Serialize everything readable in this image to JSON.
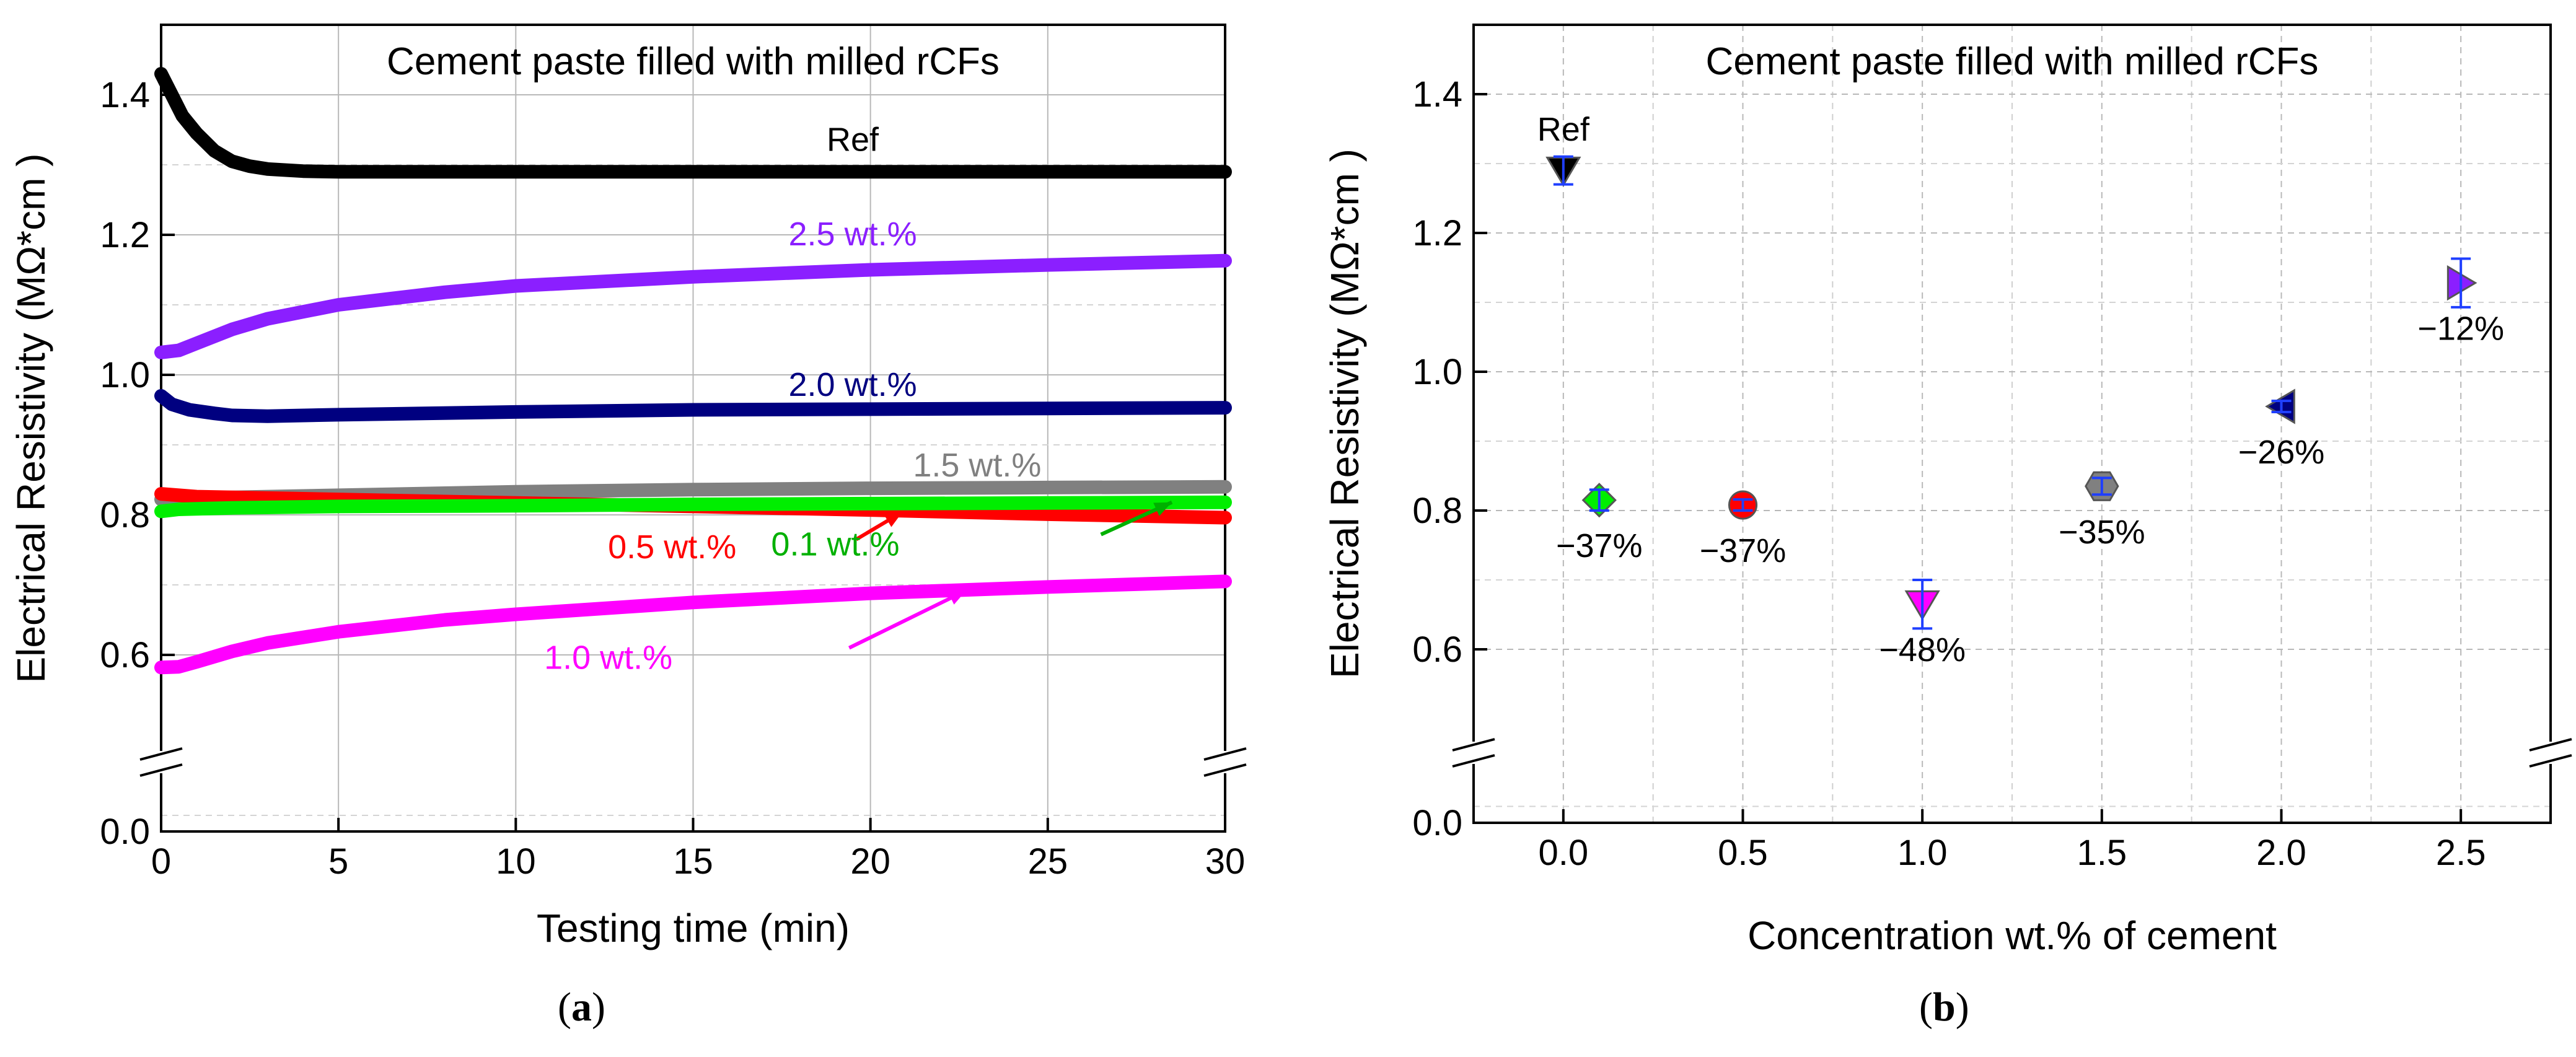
{
  "panels": {
    "a": {
      "label_prefix": "(",
      "label_letter": "a",
      "label_suffix": ")"
    },
    "b": {
      "label_prefix": "(",
      "label_letter": "b",
      "label_suffix": ")"
    }
  },
  "chart_data": [
    {
      "type": "line",
      "title": "Cement paste filled with milled rCFs",
      "xlabel": "Testing time (min)",
      "ylabel": "Electrical Resistivity (MΩ*cm )",
      "xlim": [
        0,
        30
      ],
      "ylim_broken": {
        "lower": [
          0,
          0.1
        ],
        "upper": [
          0.5,
          1.5
        ]
      },
      "xticks": [
        "0",
        "5",
        "10",
        "15",
        "20",
        "25",
        "30"
      ],
      "xtick_values": [
        0,
        5,
        10,
        15,
        20,
        25,
        30
      ],
      "yticks": [
        "0.0",
        "0.6",
        "0.8",
        "1.0",
        "1.2",
        "1.4"
      ],
      "ytick_values": [
        0,
        0.6,
        0.8,
        1.0,
        1.2,
        1.4
      ],
      "grid": true,
      "series": [
        {
          "name": "Ref",
          "color": "#000000",
          "x": [
            0,
            0.3,
            0.6,
            1,
            1.5,
            2,
            2.5,
            3,
            4,
            5,
            8,
            10,
            15,
            20,
            25,
            30
          ],
          "y": [
            1.43,
            1.4,
            1.37,
            1.345,
            1.32,
            1.305,
            1.298,
            1.294,
            1.291,
            1.29,
            1.29,
            1.29,
            1.29,
            1.29,
            1.29,
            1.29
          ]
        },
        {
          "name": "2.5 wt.%",
          "color": "#8b1fff",
          "x": [
            0,
            0.5,
            1,
            2,
            3,
            5,
            8,
            10,
            15,
            20,
            25,
            30
          ],
          "y": [
            1.032,
            1.035,
            1.045,
            1.065,
            1.08,
            1.1,
            1.118,
            1.127,
            1.14,
            1.15,
            1.157,
            1.163
          ]
        },
        {
          "name": "2.0 wt.%",
          "color": "#000080",
          "x": [
            0,
            0.3,
            0.8,
            1.5,
            2,
            3,
            5,
            10,
            15,
            20,
            25,
            30
          ],
          "y": [
            0.97,
            0.958,
            0.95,
            0.945,
            0.942,
            0.941,
            0.943,
            0.947,
            0.95,
            0.951,
            0.952,
            0.953
          ]
        },
        {
          "name": "1.5 wt.%",
          "color": "#808080",
          "x": [
            0,
            1,
            5,
            10,
            15,
            20,
            25,
            30
          ],
          "y": [
            0.822,
            0.824,
            0.828,
            0.833,
            0.836,
            0.838,
            0.839,
            0.84
          ]
        },
        {
          "name": "0.5 wt.%",
          "color": "#ff0000",
          "x": [
            0,
            1,
            5,
            10,
            15,
            20,
            25,
            30
          ],
          "y": [
            0.83,
            0.826,
            0.822,
            0.817,
            0.812,
            0.807,
            0.801,
            0.796
          ]
        },
        {
          "name": "0.1 wt.%",
          "color": "#00ee00",
          "x": [
            0,
            0.5,
            2,
            5,
            10,
            15,
            20,
            25,
            30
          ],
          "y": [
            0.805,
            0.808,
            0.81,
            0.812,
            0.813,
            0.815,
            0.816,
            0.817,
            0.818
          ]
        },
        {
          "name": "1.0 wt.%",
          "color": "#ff00ff",
          "x": [
            0,
            0.5,
            1,
            2,
            3,
            5,
            8,
            10,
            15,
            20,
            25,
            30
          ],
          "y": [
            0.582,
            0.583,
            0.59,
            0.605,
            0.617,
            0.633,
            0.65,
            0.658,
            0.675,
            0.688,
            0.697,
            0.705
          ]
        }
      ],
      "annotations": [
        {
          "text": "Ref",
          "color": "#000000",
          "x": 19.5,
          "y": 1.32,
          "anchor": "middle"
        },
        {
          "text": "2.5 wt.%",
          "color": "#8b1fff",
          "x": 19.5,
          "y": 1.185,
          "anchor": "middle"
        },
        {
          "text": "2.0 wt.%",
          "color": "#000080",
          "x": 19.5,
          "y": 0.97,
          "anchor": "middle"
        },
        {
          "text": "1.5 wt.%",
          "color": "#808080",
          "x": 21.2,
          "y": 0.855,
          "anchor": "start"
        },
        {
          "text": "0.5 wt.%",
          "color": "#ff0000",
          "x": 12.6,
          "y": 0.738,
          "anchor": "start",
          "arrow_from": [
            19.6,
            0.765
          ],
          "arrow_to": [
            20.9,
            0.804
          ]
        },
        {
          "text": "0.1 wt.%",
          "color": "#00b000",
          "x": 17.2,
          "y": 0.742,
          "anchor": "start",
          "arrow_from": [
            26.5,
            0.772
          ],
          "arrow_to": [
            28.5,
            0.818
          ]
        },
        {
          "text": "1.0 wt.%",
          "color": "#ff00ff",
          "x": 10.8,
          "y": 0.58,
          "anchor": "start",
          "arrow_from": [
            19.4,
            0.61
          ],
          "arrow_to": [
            22.7,
            0.692
          ]
        }
      ]
    },
    {
      "type": "scatter",
      "title": "Cement paste filled with milled rCFs",
      "xlabel": "Concentration wt.% of cement",
      "ylabel": "Electrical Resistivity (MΩ*cm )",
      "xlim": [
        -0.25,
        2.75
      ],
      "ylim_broken": {
        "lower": [
          0,
          0.1
        ],
        "upper": [
          0.5,
          1.5
        ]
      },
      "xticks": [
        "0.0",
        "0.5",
        "1.0",
        "1.5",
        "2.0",
        "2.5"
      ],
      "xtick_values": [
        0,
        0.5,
        1.0,
        1.5,
        2.0,
        2.5
      ],
      "yticks": [
        "0.0",
        "0.6",
        "0.8",
        "1.0",
        "1.2",
        "1.4"
      ],
      "ytick_values": [
        0,
        0.6,
        0.8,
        1.0,
        1.2,
        1.4
      ],
      "grid": true,
      "points": [
        {
          "x": 0.0,
          "y": 1.29,
          "err": 0.02,
          "label": "Ref",
          "label_pos": "above",
          "marker": "triangle-down",
          "color": "#000000"
        },
        {
          "x": 0.1,
          "y": 0.815,
          "err": 0.015,
          "label": "−37%",
          "label_pos": "below",
          "marker": "diamond",
          "color": "#00ee00"
        },
        {
          "x": 0.5,
          "y": 0.808,
          "err": 0.008,
          "label": "−37%",
          "label_pos": "below",
          "marker": "circle",
          "color": "#ff0000"
        },
        {
          "x": 1.0,
          "y": 0.665,
          "err": 0.035,
          "label": "−48%",
          "label_pos": "below",
          "marker": "triangle-down",
          "color": "#ff00ff"
        },
        {
          "x": 1.5,
          "y": 0.835,
          "err": 0.012,
          "label": "−35%",
          "label_pos": "below",
          "marker": "hexagon",
          "color": "#808080"
        },
        {
          "x": 2.0,
          "y": 0.95,
          "err": 0.008,
          "label": "−26%",
          "label_pos": "below",
          "marker": "triangle-left",
          "color": "#000080"
        },
        {
          "x": 2.5,
          "y": 1.128,
          "err": 0.035,
          "label": "−12%",
          "label_pos": "below",
          "marker": "triangle-right",
          "color": "#8b1fff"
        }
      ]
    }
  ]
}
